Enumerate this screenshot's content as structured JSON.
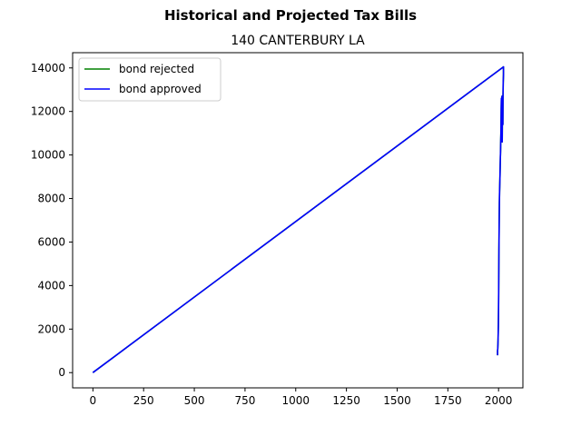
{
  "chart_data": {
    "type": "line",
    "suptitle": "Historical and Projected Tax Bills",
    "title": "140 CANTERBURY LA",
    "xlabel": "",
    "ylabel": "",
    "xlim": [
      -100,
      2120
    ],
    "ylim": [
      -700,
      14700
    ],
    "x_ticks": [
      0,
      250,
      500,
      750,
      1000,
      1250,
      1500,
      1750,
      2000
    ],
    "y_ticks": [
      0,
      2000,
      4000,
      6000,
      8000,
      10000,
      12000,
      14000
    ],
    "grid": false,
    "legend_position": "upper left",
    "series": [
      {
        "name": "bond rejected",
        "color": "#008000",
        "x": [
          0,
          2024,
          2024,
          2023,
          2022,
          2021,
          2020,
          2019,
          2018,
          2017,
          2016,
          2015,
          2014,
          2013,
          2012,
          2011,
          2010,
          2009,
          2008,
          2007,
          2006,
          2005,
          2004,
          2003,
          2002,
          2001,
          2000,
          1999,
          1998,
          1997,
          1996,
          1995,
          1995
        ],
        "y": [
          0,
          14050,
          13700,
          13300,
          12700,
          11400,
          12300,
          11900,
          10600,
          12700,
          12200,
          11900,
          12600,
          12100,
          11200,
          10700,
          10200,
          9900,
          9500,
          9100,
          8600,
          8300,
          7800,
          7000,
          5600,
          4300,
          3000,
          2200,
          1600,
          1300,
          1100,
          1000,
          800
        ]
      },
      {
        "name": "bond approved",
        "color": "#0000ff",
        "x": [
          0,
          2024,
          2024,
          2023,
          2022,
          2021,
          2020,
          2019,
          2018,
          2017,
          2016,
          2015,
          2014,
          2013,
          2012,
          2011,
          2010,
          2009,
          2008,
          2007,
          2006,
          2005,
          2004,
          2003,
          2002,
          2001,
          2000,
          1999,
          1998,
          1997,
          1996,
          1995,
          1995
        ],
        "y": [
          0,
          14050,
          13700,
          13300,
          12700,
          11400,
          12300,
          11900,
          10600,
          12700,
          12200,
          11900,
          12600,
          12100,
          11200,
          10700,
          10200,
          9900,
          9500,
          9100,
          8600,
          8300,
          7800,
          7000,
          5600,
          4300,
          3000,
          2200,
          1600,
          1300,
          1100,
          1000,
          800
        ]
      }
    ]
  }
}
